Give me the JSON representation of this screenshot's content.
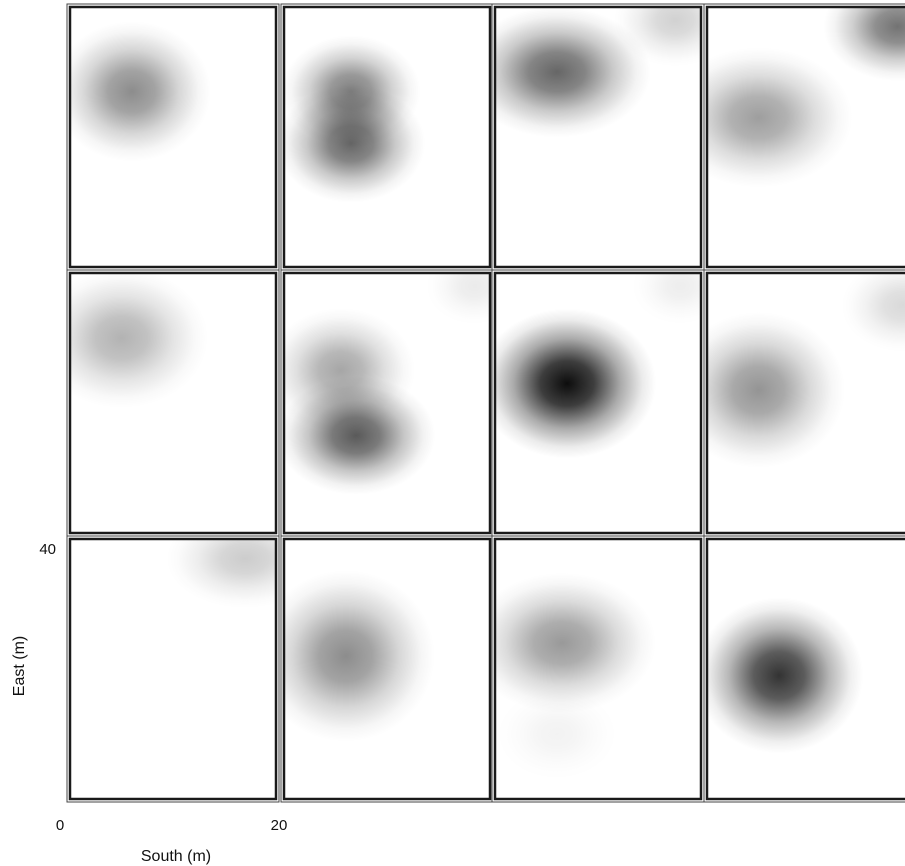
{
  "chart_data": {
    "type": "heatmap",
    "title": "",
    "xlabel": "South (m)",
    "ylabel": "East (m)",
    "x_tick_labels": [
      "0",
      "20"
    ],
    "y_tick_labels": [
      "40"
    ],
    "xlim": [
      0,
      20
    ],
    "ylim": [
      0,
      40
    ],
    "grid": false,
    "legend": "none",
    "colormap": {
      "low": "#ffffff",
      "high": "#000000"
    },
    "layout": {
      "rows": 3,
      "cols": 4
    },
    "panels": [
      {
        "row": 0,
        "col": 0,
        "blobs": [
          {
            "x": 6,
            "y": 27,
            "sx": 3.2,
            "sy": 4.5,
            "intensity": 0.45
          }
        ]
      },
      {
        "row": 0,
        "col": 1,
        "blobs": [
          {
            "x": 6.5,
            "y": 27,
            "sx": 2.8,
            "sy": 3.6,
            "intensity": 0.5
          },
          {
            "x": 6.5,
            "y": 19,
            "sx": 3.0,
            "sy": 3.8,
            "intensity": 0.6
          }
        ]
      },
      {
        "row": 0,
        "col": 2,
        "blobs": [
          {
            "x": 6,
            "y": 30,
            "sx": 3.8,
            "sy": 4.2,
            "intensity": 0.6
          },
          {
            "x": 17.5,
            "y": 38,
            "sx": 2.5,
            "sy": 3.0,
            "intensity": 0.18
          }
        ]
      },
      {
        "row": 0,
        "col": 3,
        "blobs": [
          {
            "x": 5,
            "y": 23,
            "sx": 3.8,
            "sy": 4.5,
            "intensity": 0.38
          },
          {
            "x": 18.5,
            "y": 37,
            "sx": 3.0,
            "sy": 3.5,
            "intensity": 0.55
          }
        ]
      },
      {
        "row": 1,
        "col": 0,
        "blobs": [
          {
            "x": 5,
            "y": 30,
            "sx": 3.5,
            "sy": 4.5,
            "intensity": 0.3
          }
        ]
      },
      {
        "row": 1,
        "col": 1,
        "blobs": [
          {
            "x": 5.5,
            "y": 25,
            "sx": 3.0,
            "sy": 4.0,
            "intensity": 0.35
          },
          {
            "x": 7,
            "y": 15,
            "sx": 3.2,
            "sy": 3.8,
            "intensity": 0.65
          },
          {
            "x": 18.5,
            "y": 38,
            "sx": 2.0,
            "sy": 2.5,
            "intensity": 0.08
          }
        ]
      },
      {
        "row": 1,
        "col": 2,
        "blobs": [
          {
            "x": 7,
            "y": 23,
            "sx": 3.6,
            "sy": 4.8,
            "intensity": 0.95
          },
          {
            "x": 18,
            "y": 38,
            "sx": 2.0,
            "sy": 2.5,
            "intensity": 0.07
          }
        ]
      },
      {
        "row": 1,
        "col": 3,
        "blobs": [
          {
            "x": 5,
            "y": 22,
            "sx": 3.5,
            "sy": 5.0,
            "intensity": 0.42
          },
          {
            "x": 19,
            "y": 35,
            "sx": 2.5,
            "sy": 3.0,
            "intensity": 0.15
          }
        ]
      },
      {
        "row": 2,
        "col": 0,
        "blobs": [
          {
            "x": 17,
            "y": 37,
            "sx": 3.2,
            "sy": 3.2,
            "intensity": 0.2
          }
        ]
      },
      {
        "row": 2,
        "col": 1,
        "blobs": [
          {
            "x": 6,
            "y": 22,
            "sx": 3.6,
            "sy": 5.5,
            "intensity": 0.45
          }
        ]
      },
      {
        "row": 2,
        "col": 2,
        "blobs": [
          {
            "x": 6.5,
            "y": 24,
            "sx": 3.8,
            "sy": 4.5,
            "intensity": 0.4
          },
          {
            "x": 6,
            "y": 10,
            "sx": 2.5,
            "sy": 3.0,
            "intensity": 0.05
          }
        ]
      },
      {
        "row": 2,
        "col": 3,
        "blobs": [
          {
            "x": 7,
            "y": 19,
            "sx": 3.4,
            "sy": 5.0,
            "intensity": 0.8
          }
        ]
      }
    ]
  }
}
